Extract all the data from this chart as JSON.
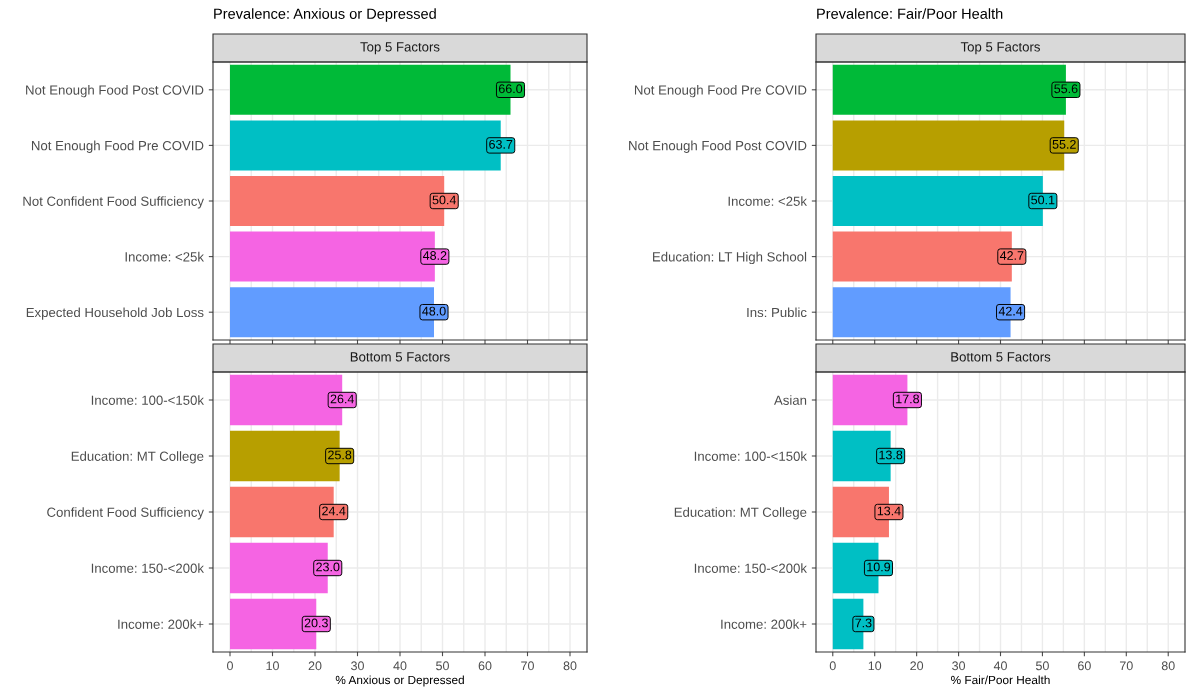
{
  "chart_data": [
    {
      "type": "bar",
      "orientation": "horizontal",
      "title": "Prevalence: Anxious or Depressed",
      "subtitle": "Top 5 Factors",
      "categories": [
        "Not Enough Food Post COVID",
        "Not Enough Food Pre COVID",
        "Not Confident Food Sufficiency",
        "Income: <25k",
        "Expected Household Job Loss"
      ],
      "values": [
        66.0,
        63.7,
        50.4,
        48.2,
        48.0
      ],
      "value_labels": [
        "66.0",
        "63.7",
        "50.4",
        "48.2",
        "48.0"
      ],
      "colors": [
        "#00ba38",
        "#00bfc4",
        "#f8766d",
        "#f564e3",
        "#619cff"
      ],
      "xlim": [
        -4,
        84
      ],
      "xticks": [
        0,
        10,
        20,
        30,
        40,
        50,
        60,
        70,
        80
      ],
      "tick_labels": "y",
      "grid": true
    },
    {
      "type": "bar",
      "orientation": "horizontal",
      "subtitle": "Bottom 5 Factors",
      "xlabel": "% Anxious or Depressed",
      "categories": [
        "Income: 100-<150k",
        "Education: MT College",
        "Confident Food Sufficiency",
        "Income: 150-<200k",
        "Income: 200k+"
      ],
      "values": [
        26.4,
        25.8,
        24.4,
        23.0,
        20.3
      ],
      "value_labels": [
        "26.4",
        "25.8",
        "24.4",
        "23.0",
        "20.3"
      ],
      "colors": [
        "#f564e3",
        "#b79f00",
        "#f8766d",
        "#f564e3",
        "#f564e3"
      ],
      "xlim": [
        -4,
        84
      ],
      "xticks": [
        0,
        10,
        20,
        30,
        40,
        50,
        60,
        70,
        80
      ],
      "grid": true
    },
    {
      "type": "bar",
      "orientation": "horizontal",
      "title": "Prevalence: Fair/Poor Health",
      "subtitle": "Top 5 Factors",
      "categories": [
        "Not Enough Food Pre COVID",
        "Not Enough Food Post COVID",
        "Income: <25k",
        "Education: LT High School",
        "Ins: Public"
      ],
      "values": [
        55.6,
        55.2,
        50.1,
        42.7,
        42.4
      ],
      "value_labels": [
        "55.6",
        "55.2",
        "50.1",
        "42.7",
        "42.4"
      ],
      "colors": [
        "#00ba38",
        "#b79f00",
        "#00bfc4",
        "#f8766d",
        "#619cff"
      ],
      "xlim": [
        -4,
        84
      ],
      "xticks": [
        0,
        10,
        20,
        30,
        40,
        50,
        60,
        70,
        80
      ],
      "tick_labels": "y",
      "grid": true
    },
    {
      "type": "bar",
      "orientation": "horizontal",
      "subtitle": "Bottom 5 Factors",
      "xlabel": "% Fair/Poor Health",
      "categories": [
        "Asian",
        "Income: 100-<150k",
        "Education: MT College",
        "Income: 150-<200k",
        "Income: 200k+"
      ],
      "values": [
        17.8,
        13.8,
        13.4,
        10.9,
        7.3
      ],
      "value_labels": [
        "17.8",
        "13.8",
        "13.4",
        "10.9",
        "7.3"
      ],
      "colors": [
        "#f564e3",
        "#00bfc4",
        "#f8766d",
        "#00bfc4",
        "#00bfc4"
      ],
      "xlim": [
        -4,
        84
      ],
      "xticks": [
        0,
        10,
        20,
        30,
        40,
        50,
        60,
        70,
        80
      ],
      "grid": true
    }
  ]
}
